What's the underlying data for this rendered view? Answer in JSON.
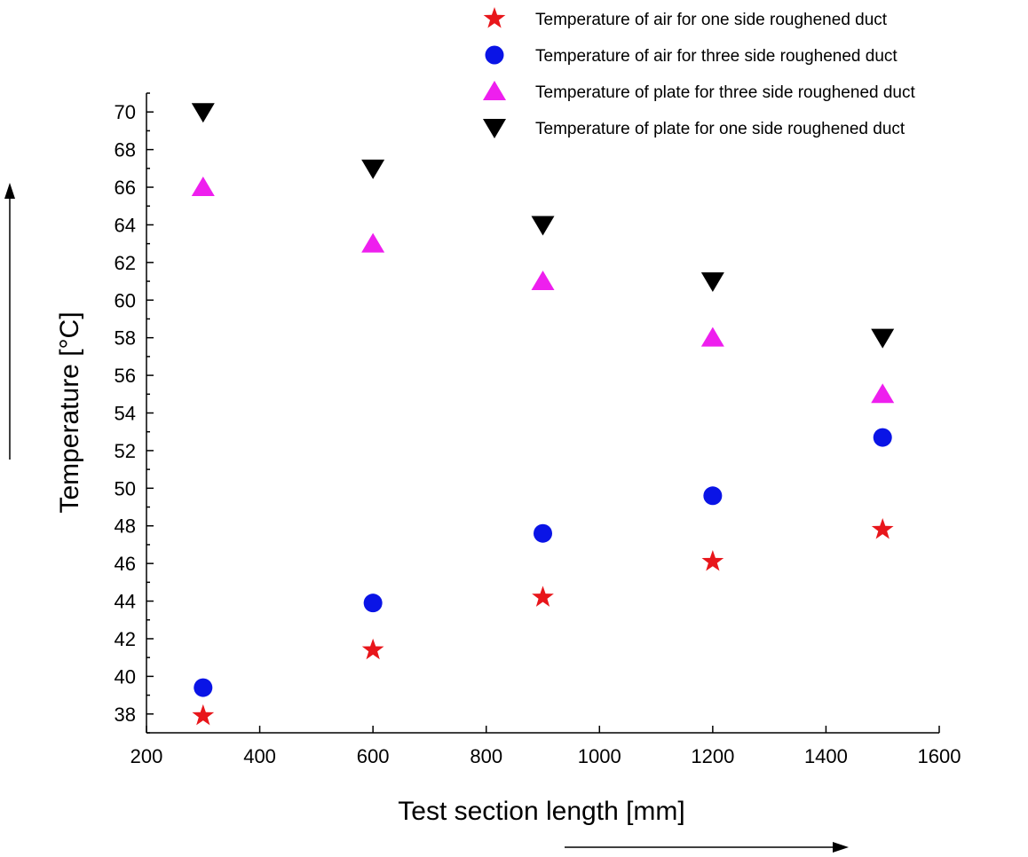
{
  "chart_data": {
    "type": "scatter",
    "xlabel": "Test section length  [mm]",
    "ylabel": "Temperature  [°C]",
    "xlim": [
      200,
      1600
    ],
    "ylim": [
      37,
      71
    ],
    "x_ticks": [
      200,
      400,
      600,
      800,
      1000,
      1200,
      1400,
      1600
    ],
    "y_ticks": [
      38,
      40,
      42,
      44,
      46,
      48,
      50,
      52,
      54,
      56,
      58,
      60,
      62,
      64,
      66,
      68,
      70
    ],
    "legend_position": "top-right",
    "series": [
      {
        "name": "Temperature of air for one side roughened duct",
        "marker": "star",
        "color": "#e8161b",
        "x": [
          300,
          600,
          900,
          1200,
          1500
        ],
        "y": [
          37.9,
          41.4,
          44.2,
          46.1,
          47.8
        ]
      },
      {
        "name": "Temperature of air for three side roughened duct",
        "marker": "circle",
        "color": "#0a14e6",
        "x": [
          300,
          600,
          900,
          1200,
          1500
        ],
        "y": [
          39.4,
          43.9,
          47.6,
          49.6,
          52.7
        ]
      },
      {
        "name": "Temperature of plate for three side roughened duct",
        "marker": "triangle-up",
        "color": "#ee1fee",
        "x": [
          300,
          600,
          900,
          1200,
          1500
        ],
        "y": [
          66,
          63,
          61,
          58,
          55
        ]
      },
      {
        "name": "Temperature of plate for one side roughened duct",
        "marker": "triangle-down",
        "color": "#000000",
        "x": [
          300,
          600,
          900,
          1200,
          1500
        ],
        "y": [
          70,
          67,
          64,
          61,
          58
        ]
      }
    ]
  }
}
